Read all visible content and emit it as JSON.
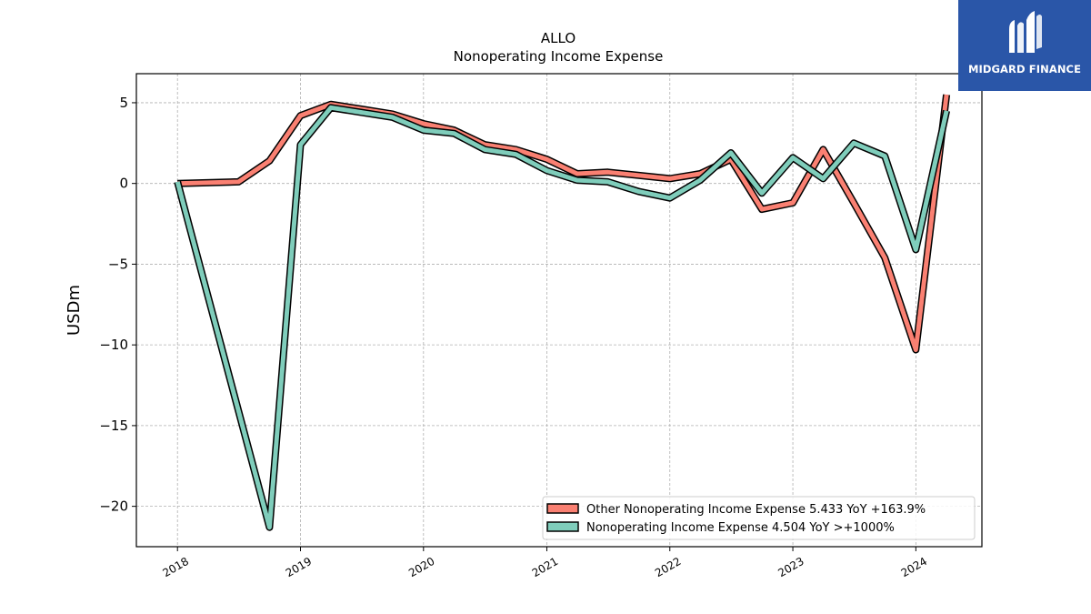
{
  "header": {
    "ticker": "ALLO",
    "subtitle": "Nonoperating Income Expense"
  },
  "logo": {
    "text": "MIDGARD FINANCE",
    "background": "#2a56a8"
  },
  "chart_data": {
    "type": "line",
    "title": "ALLO",
    "subtitle": "Nonoperating Income Expense",
    "ylabel": "USDm",
    "xlabel": "",
    "xlim": [
      "2017-09-01",
      "2024-07-15"
    ],
    "ylim": [
      -22.5,
      6.8
    ],
    "yticks": [
      5,
      0,
      -5,
      -10,
      -15,
      -20
    ],
    "ytick_labels": [
      "5",
      "0",
      "−5",
      "−10",
      "−15",
      "−20"
    ],
    "xticks": [
      "2018-01-01",
      "2019-01-01",
      "2020-01-01",
      "2021-01-01",
      "2022-01-01",
      "2023-01-01",
      "2024-01-01"
    ],
    "xtick_labels": [
      "2018",
      "2019",
      "2020",
      "2021",
      "2022",
      "2023",
      "2024"
    ],
    "grid": true,
    "legend_position": "lower-right",
    "series": [
      {
        "name": "Other Nonoperating Income Expense",
        "legend_label": "Other Nonoperating Income Expense  5.433 YoY +163.9%",
        "color": "#fa8072",
        "points": [
          [
            "2018-01-01",
            0.0
          ],
          [
            "2018-07-01",
            0.1
          ],
          [
            "2018-10-01",
            1.4
          ],
          [
            "2019-01-01",
            4.2
          ],
          [
            "2019-04-01",
            4.9
          ],
          [
            "2019-07-01",
            4.6
          ],
          [
            "2019-10-01",
            4.3
          ],
          [
            "2020-01-01",
            3.7
          ],
          [
            "2020-04-01",
            3.3
          ],
          [
            "2020-07-01",
            2.4
          ],
          [
            "2020-10-01",
            2.1
          ],
          [
            "2021-01-01",
            1.5
          ],
          [
            "2021-04-01",
            0.6
          ],
          [
            "2021-07-01",
            0.7
          ],
          [
            "2021-10-01",
            0.5
          ],
          [
            "2022-01-01",
            0.3
          ],
          [
            "2022-04-01",
            0.6
          ],
          [
            "2022-07-01",
            1.5
          ],
          [
            "2022-10-01",
            -1.6
          ],
          [
            "2023-01-01",
            -1.2
          ],
          [
            "2023-04-01",
            2.1
          ],
          [
            "2023-07-01",
            -1.2
          ],
          [
            "2023-10-01",
            -4.6
          ],
          [
            "2024-01-01",
            -10.3
          ],
          [
            "2024-04-01",
            5.5
          ]
        ]
      },
      {
        "name": "Nonoperating Income Expense",
        "legend_label": "Nonoperating Income Expense  4.504 YoY >+1000%",
        "color": "#7fcdbb",
        "points": [
          [
            "2018-01-01",
            0.1
          ],
          [
            "2018-10-01",
            -21.3
          ],
          [
            "2019-01-01",
            2.4
          ],
          [
            "2019-04-01",
            4.7
          ],
          [
            "2019-07-01",
            4.4
          ],
          [
            "2019-10-01",
            4.1
          ],
          [
            "2020-01-01",
            3.3
          ],
          [
            "2020-04-01",
            3.1
          ],
          [
            "2020-07-01",
            2.1
          ],
          [
            "2020-10-01",
            1.8
          ],
          [
            "2021-01-01",
            0.8
          ],
          [
            "2021-04-01",
            0.2
          ],
          [
            "2021-07-01",
            0.1
          ],
          [
            "2021-10-01",
            -0.5
          ],
          [
            "2022-01-01",
            -0.9
          ],
          [
            "2022-04-01",
            0.2
          ],
          [
            "2022-07-01",
            1.9
          ],
          [
            "2022-10-01",
            -0.6
          ],
          [
            "2023-01-01",
            1.6
          ],
          [
            "2023-04-01",
            0.3
          ],
          [
            "2023-07-01",
            2.5
          ],
          [
            "2023-10-01",
            1.7
          ],
          [
            "2024-01-01",
            -4.1
          ],
          [
            "2024-04-01",
            4.5
          ]
        ]
      }
    ]
  }
}
